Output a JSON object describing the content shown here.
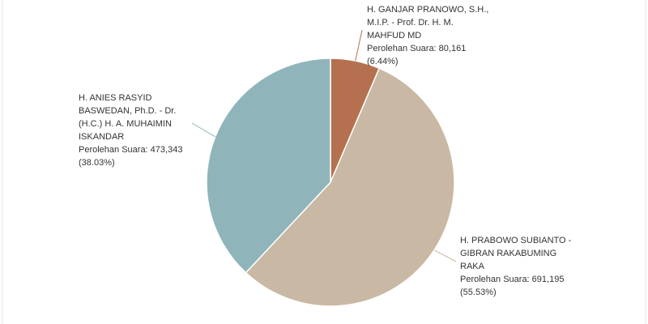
{
  "chart_data": {
    "type": "pie",
    "categories": [
      [
        "H. GANJAR PRANOWO, S.H.,",
        "M.I.P. - Prof. Dr. H. M.",
        "MAHFUD MD"
      ],
      [
        "H. PRABOWO SUBIANTO -",
        "GIBRAN RAKABUMING",
        "RAKA"
      ],
      [
        "H. ANIES RASYID",
        "BASWEDAN, Ph.D. - Dr.",
        "(H.C.) H. A. MUHAIMIN",
        "ISKANDAR"
      ]
    ],
    "values": [
      80161,
      691195,
      473343
    ],
    "value_labels": [
      "Perolehan Suara: 80,161",
      "Perolehan Suara: 691,195",
      "Perolehan Suara: 473,343"
    ],
    "percent_labels": [
      "(6.44%)",
      "(55.53%)",
      "(38.03%)"
    ],
    "colors": [
      "#b5714f",
      "#c9b8a3",
      "#8fb5bb"
    ]
  }
}
